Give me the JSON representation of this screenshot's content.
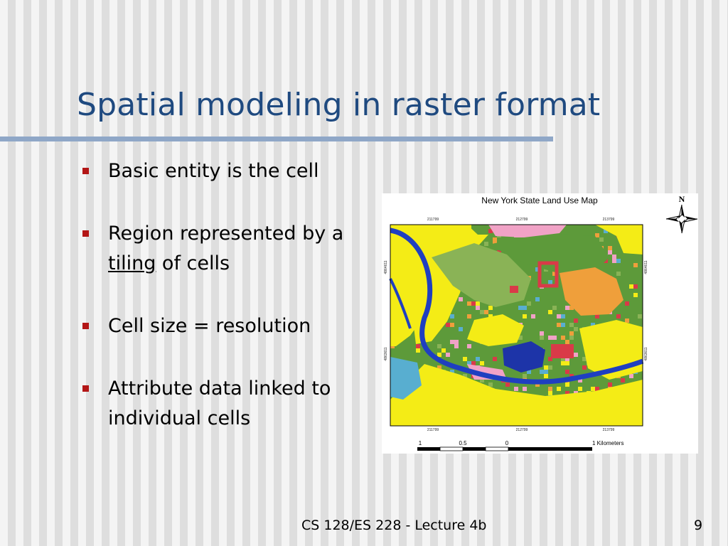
{
  "slide": {
    "title": "Spatial modeling in raster format",
    "bullets": [
      {
        "parts": [
          {
            "text": "Basic entity is the cell"
          }
        ]
      },
      {
        "parts": [
          {
            "text": "Region represented by a "
          },
          {
            "text": "tiling",
            "underline": true
          },
          {
            "text": " of cells"
          }
        ]
      },
      {
        "parts": [
          {
            "text": "Cell size = resolution"
          }
        ]
      },
      {
        "parts": [
          {
            "text": "Attribute data linked to individual cells"
          }
        ]
      }
    ],
    "footer": "CS 128/ES 228 - Lecture 4b",
    "page_number": "9"
  },
  "map": {
    "title": "New York State Land Use Map",
    "north_label": "N",
    "top_ticks": [
      "211799",
      "212799",
      "213799"
    ],
    "bottom_ticks": [
      "211799",
      "212799",
      "213799"
    ],
    "left_ticks": [
      "4864611",
      "4863611"
    ],
    "right_ticks": [
      "4864611",
      "4863611"
    ],
    "scale_labels": [
      "1",
      "0.5",
      "0",
      "1 Kilometers"
    ],
    "colors": {
      "yellow": "#f4ec16",
      "green": "#5d9a3a",
      "light_green": "#8ab356",
      "water": "#1f3fc0",
      "pink": "#f1a2c6",
      "orange": "#ef9f3b",
      "red": "#d93a48",
      "teal": "#58aed0"
    }
  }
}
